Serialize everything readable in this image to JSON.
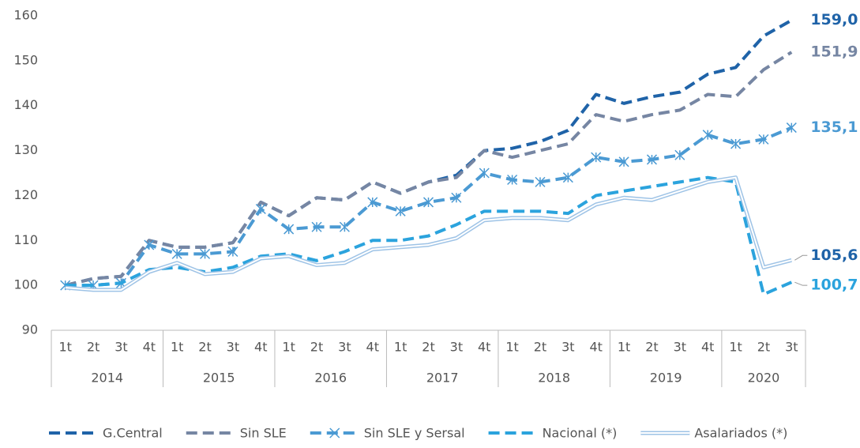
{
  "chart_data": {
    "type": "line",
    "categories": [
      "1t",
      "2t",
      "3t",
      "4t",
      "1t",
      "2t",
      "3t",
      "4t",
      "1t",
      "2t",
      "3t",
      "4t",
      "1t",
      "2t",
      "3t",
      "4t",
      "1t",
      "2t",
      "3t",
      "4t",
      "1t",
      "2t",
      "3t",
      "4t",
      "1t",
      "2t",
      "3t"
    ],
    "years": [
      "2014",
      "2015",
      "2016",
      "2017",
      "2018",
      "2019",
      "2020"
    ],
    "ylim": [
      90,
      160
    ],
    "yticks": [
      90,
      100,
      110,
      120,
      130,
      140,
      150,
      160
    ],
    "series": [
      {
        "name": "G.Central",
        "color": "#1f63a8",
        "style": "dashed",
        "values": [
          100,
          101.5,
          102,
          110,
          108.5,
          108.5,
          109.5,
          118.5,
          115.5,
          119.5,
          119,
          123,
          120.5,
          123,
          124.5,
          130,
          130.5,
          132,
          134.5,
          142.5,
          140.5,
          142,
          143,
          147,
          148.5,
          155.5,
          159.0
        ],
        "value_labels": [
          null,
          null,
          null,
          null,
          null,
          null,
          null,
          null,
          null,
          null,
          null,
          null,
          null,
          null,
          null,
          null,
          null,
          null,
          null,
          null,
          null,
          null,
          null,
          null,
          null,
          null,
          "159,0"
        ]
      },
      {
        "name": "Sin SLE",
        "color": "#7686a3",
        "style": "dashed",
        "values": [
          100,
          101.5,
          102,
          110,
          108.5,
          108.5,
          109.5,
          118.5,
          115.5,
          119.5,
          119,
          123,
          120.5,
          123,
          124,
          130,
          128.5,
          130,
          131.5,
          138,
          136.5,
          138,
          139,
          142.5,
          142,
          148,
          151.9
        ],
        "value_labels": [
          null,
          null,
          null,
          null,
          null,
          null,
          null,
          null,
          null,
          null,
          null,
          null,
          null,
          null,
          null,
          null,
          null,
          null,
          null,
          null,
          null,
          null,
          null,
          null,
          null,
          null,
          "151,9"
        ]
      },
      {
        "name": "Sin SLE y Sersal",
        "color": "#4b9ad3",
        "style": "dashed",
        "marker": "star",
        "values": [
          100,
          100,
          100.5,
          109,
          107,
          107,
          107.5,
          117,
          112.5,
          113,
          113,
          118.5,
          116.5,
          118.5,
          119.5,
          125,
          123.5,
          123,
          124,
          128.5,
          127.5,
          128,
          129,
          133.5,
          131.5,
          132.5,
          135.1
        ],
        "value_labels": [
          null,
          null,
          null,
          null,
          null,
          null,
          null,
          null,
          null,
          null,
          null,
          null,
          null,
          null,
          null,
          null,
          null,
          null,
          null,
          null,
          null,
          null,
          null,
          null,
          null,
          null,
          "135,1"
        ]
      },
      {
        "name": "Nacional (*)",
        "color": "#2ba3dd",
        "style": "dashed",
        "values": [
          100,
          100,
          100.5,
          103.5,
          104,
          103,
          104,
          106.5,
          107,
          105.5,
          107.5,
          110,
          110,
          111,
          113.5,
          116.5,
          116.5,
          116.5,
          116,
          120,
          121,
          122,
          123,
          124,
          123,
          98,
          100.7
        ],
        "value_labels": [
          null,
          null,
          null,
          null,
          null,
          null,
          null,
          null,
          null,
          null,
          null,
          null,
          null,
          null,
          null,
          null,
          null,
          null,
          null,
          null,
          null,
          null,
          null,
          null,
          null,
          null,
          "100,7"
        ]
      },
      {
        "name": "Asalariados (*)",
        "color": "#9ec3e6",
        "style": "double",
        "values": [
          99.5,
          99,
          99,
          103,
          105,
          102.5,
          103,
          106,
          106.5,
          104.5,
          105,
          108,
          108.5,
          109,
          110.5,
          114.5,
          115,
          115,
          114.5,
          118,
          119.5,
          119,
          121,
          123,
          124,
          104,
          105.6
        ],
        "value_labels": [
          null,
          null,
          null,
          null,
          null,
          null,
          null,
          null,
          null,
          null,
          null,
          null,
          null,
          null,
          null,
          null,
          null,
          null,
          null,
          null,
          null,
          null,
          null,
          null,
          null,
          null,
          "105,6"
        ]
      }
    ]
  }
}
